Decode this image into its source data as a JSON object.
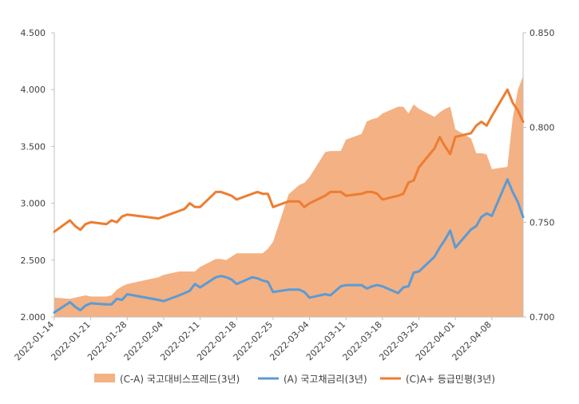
{
  "chart_data": {
    "type": "line",
    "y_left": {
      "min": 2.0,
      "max": 4.5,
      "ticks": [
        "2.000",
        "2.500",
        "3.000",
        "3.500",
        "4.000",
        "4.500"
      ]
    },
    "y_right": {
      "min": 0.7,
      "max": 0.85,
      "ticks": [
        "0.700",
        "0.750",
        "0.800",
        "0.850"
      ]
    },
    "x_ticks": [
      "2022-01-14",
      "2022-01-21",
      "2022-01-28",
      "2022-02-04",
      "2022-02-11",
      "2022-02-18",
      "2022-02-25",
      "2022-03-04",
      "2022-03-11",
      "2022-03-18",
      "2022-03-25",
      "2022-04-01",
      "2022-04-08"
    ],
    "x_range": {
      "start": "2022-01-14",
      "end": "2022-04-14"
    },
    "grid": false,
    "legend_position": "bottom",
    "series": [
      {
        "name": "(C-A) 국고대비스프레드(3년)",
        "type": "area",
        "axis": "left",
        "color": "#F4B183",
        "x": [
          "2022-01-14",
          "2022-01-17",
          "2022-01-18",
          "2022-01-19",
          "2022-01-20",
          "2022-01-21",
          "2022-01-24",
          "2022-01-25",
          "2022-01-26",
          "2022-01-27",
          "2022-01-28",
          "2022-02-03",
          "2022-02-04",
          "2022-02-07",
          "2022-02-08",
          "2022-02-09",
          "2022-02-10",
          "2022-02-11",
          "2022-02-14",
          "2022-02-15",
          "2022-02-16",
          "2022-02-17",
          "2022-02-18",
          "2022-02-21",
          "2022-02-22",
          "2022-02-23",
          "2022-02-24",
          "2022-02-25",
          "2022-02-28",
          "2022-03-02",
          "2022-03-03",
          "2022-03-04",
          "2022-03-07",
          "2022-03-08",
          "2022-03-10",
          "2022-03-11",
          "2022-03-14",
          "2022-03-15",
          "2022-03-16",
          "2022-03-17",
          "2022-03-18",
          "2022-03-21",
          "2022-03-22",
          "2022-03-23",
          "2022-03-24",
          "2022-03-25",
          "2022-03-28",
          "2022-03-29",
          "2022-03-30",
          "2022-03-31",
          "2022-04-01",
          "2022-04-04",
          "2022-04-05",
          "2022-04-06",
          "2022-04-07",
          "2022-04-08",
          "2022-04-11",
          "2022-04-12",
          "2022-04-13",
          "2022-04-14"
        ],
        "values": [
          2.17,
          2.16,
          2.17,
          2.18,
          2.19,
          2.18,
          2.18,
          2.19,
          2.24,
          2.27,
          2.29,
          2.35,
          2.37,
          2.4,
          2.4,
          2.4,
          2.4,
          2.44,
          2.51,
          2.51,
          2.5,
          2.53,
          2.56,
          2.56,
          2.56,
          2.56,
          2.6,
          2.66,
          3.08,
          3.16,
          3.18,
          3.23,
          3.45,
          3.46,
          3.46,
          3.56,
          3.61,
          3.72,
          3.74,
          3.75,
          3.79,
          3.85,
          3.85,
          3.79,
          3.87,
          3.83,
          3.76,
          3.8,
          3.83,
          3.85,
          3.65,
          3.57,
          3.44,
          3.44,
          3.43,
          3.3,
          3.32,
          3.75,
          4.0,
          4.12
        ]
      },
      {
        "name": "(A) 국고채금리(3년)",
        "type": "line",
        "axis": "left",
        "color": "#5B9BD5",
        "x": [
          "2022-01-14",
          "2022-01-17",
          "2022-01-18",
          "2022-01-19",
          "2022-01-20",
          "2022-01-21",
          "2022-01-24",
          "2022-01-25",
          "2022-01-26",
          "2022-01-27",
          "2022-01-28",
          "2022-02-03",
          "2022-02-04",
          "2022-02-07",
          "2022-02-08",
          "2022-02-09",
          "2022-02-10",
          "2022-02-11",
          "2022-02-14",
          "2022-02-15",
          "2022-02-16",
          "2022-02-17",
          "2022-02-18",
          "2022-02-21",
          "2022-02-22",
          "2022-02-23",
          "2022-02-24",
          "2022-02-25",
          "2022-02-28",
          "2022-03-02",
          "2022-03-03",
          "2022-03-04",
          "2022-03-07",
          "2022-03-08",
          "2022-03-10",
          "2022-03-11",
          "2022-03-14",
          "2022-03-15",
          "2022-03-16",
          "2022-03-17",
          "2022-03-18",
          "2022-03-21",
          "2022-03-22",
          "2022-03-23",
          "2022-03-24",
          "2022-03-25",
          "2022-03-28",
          "2022-03-29",
          "2022-03-30",
          "2022-03-31",
          "2022-04-01",
          "2022-04-04",
          "2022-04-05",
          "2022-04-06",
          "2022-04-07",
          "2022-04-08",
          "2022-04-11",
          "2022-04-12",
          "2022-04-13",
          "2022-04-14"
        ],
        "values": [
          2.04,
          2.13,
          2.09,
          2.06,
          2.1,
          2.12,
          2.11,
          2.11,
          2.16,
          2.15,
          2.2,
          2.15,
          2.14,
          2.19,
          2.21,
          2.23,
          2.29,
          2.26,
          2.35,
          2.36,
          2.35,
          2.33,
          2.29,
          2.35,
          2.34,
          2.32,
          2.31,
          2.22,
          2.24,
          2.24,
          2.22,
          2.17,
          2.2,
          2.19,
          2.27,
          2.28,
          2.28,
          2.25,
          2.27,
          2.28,
          2.27,
          2.21,
          2.26,
          2.27,
          2.39,
          2.4,
          2.53,
          2.61,
          2.68,
          2.76,
          2.61,
          2.77,
          2.8,
          2.88,
          2.91,
          2.89,
          3.21,
          3.1,
          3.01,
          2.88
        ]
      },
      {
        "name": "(C)A+ 등급민평(3년)",
        "type": "line",
        "axis": "right",
        "color": "#ED7D31",
        "x": [
          "2022-01-14",
          "2022-01-17",
          "2022-01-18",
          "2022-01-19",
          "2022-01-20",
          "2022-01-21",
          "2022-01-24",
          "2022-01-25",
          "2022-01-26",
          "2022-01-27",
          "2022-01-28",
          "2022-02-03",
          "2022-02-04",
          "2022-02-07",
          "2022-02-08",
          "2022-02-09",
          "2022-02-10",
          "2022-02-11",
          "2022-02-14",
          "2022-02-15",
          "2022-02-16",
          "2022-02-17",
          "2022-02-18",
          "2022-02-21",
          "2022-02-22",
          "2022-02-23",
          "2022-02-24",
          "2022-02-25",
          "2022-02-28",
          "2022-03-02",
          "2022-03-03",
          "2022-03-04",
          "2022-03-07",
          "2022-03-08",
          "2022-03-10",
          "2022-03-11",
          "2022-03-14",
          "2022-03-15",
          "2022-03-16",
          "2022-03-17",
          "2022-03-18",
          "2022-03-21",
          "2022-03-22",
          "2022-03-23",
          "2022-03-24",
          "2022-03-25",
          "2022-03-28",
          "2022-03-29",
          "2022-03-30",
          "2022-03-31",
          "2022-04-01",
          "2022-04-04",
          "2022-04-05",
          "2022-04-06",
          "2022-04-07",
          "2022-04-08",
          "2022-04-11",
          "2022-04-12",
          "2022-04-13",
          "2022-04-14"
        ],
        "values": [
          0.745,
          0.751,
          0.748,
          0.746,
          0.749,
          0.75,
          0.749,
          0.751,
          0.75,
          0.753,
          0.754,
          0.752,
          0.753,
          0.756,
          0.757,
          0.76,
          0.758,
          0.758,
          0.766,
          0.766,
          0.765,
          0.764,
          0.762,
          0.765,
          0.766,
          0.765,
          0.765,
          0.758,
          0.761,
          0.761,
          0.758,
          0.76,
          0.764,
          0.766,
          0.766,
          0.764,
          0.765,
          0.766,
          0.766,
          0.765,
          0.762,
          0.764,
          0.765,
          0.771,
          0.772,
          0.779,
          0.789,
          0.795,
          0.79,
          0.786,
          0.795,
          0.797,
          0.801,
          0.803,
          0.801,
          0.806,
          0.82,
          0.813,
          0.809,
          0.803
        ]
      }
    ]
  }
}
